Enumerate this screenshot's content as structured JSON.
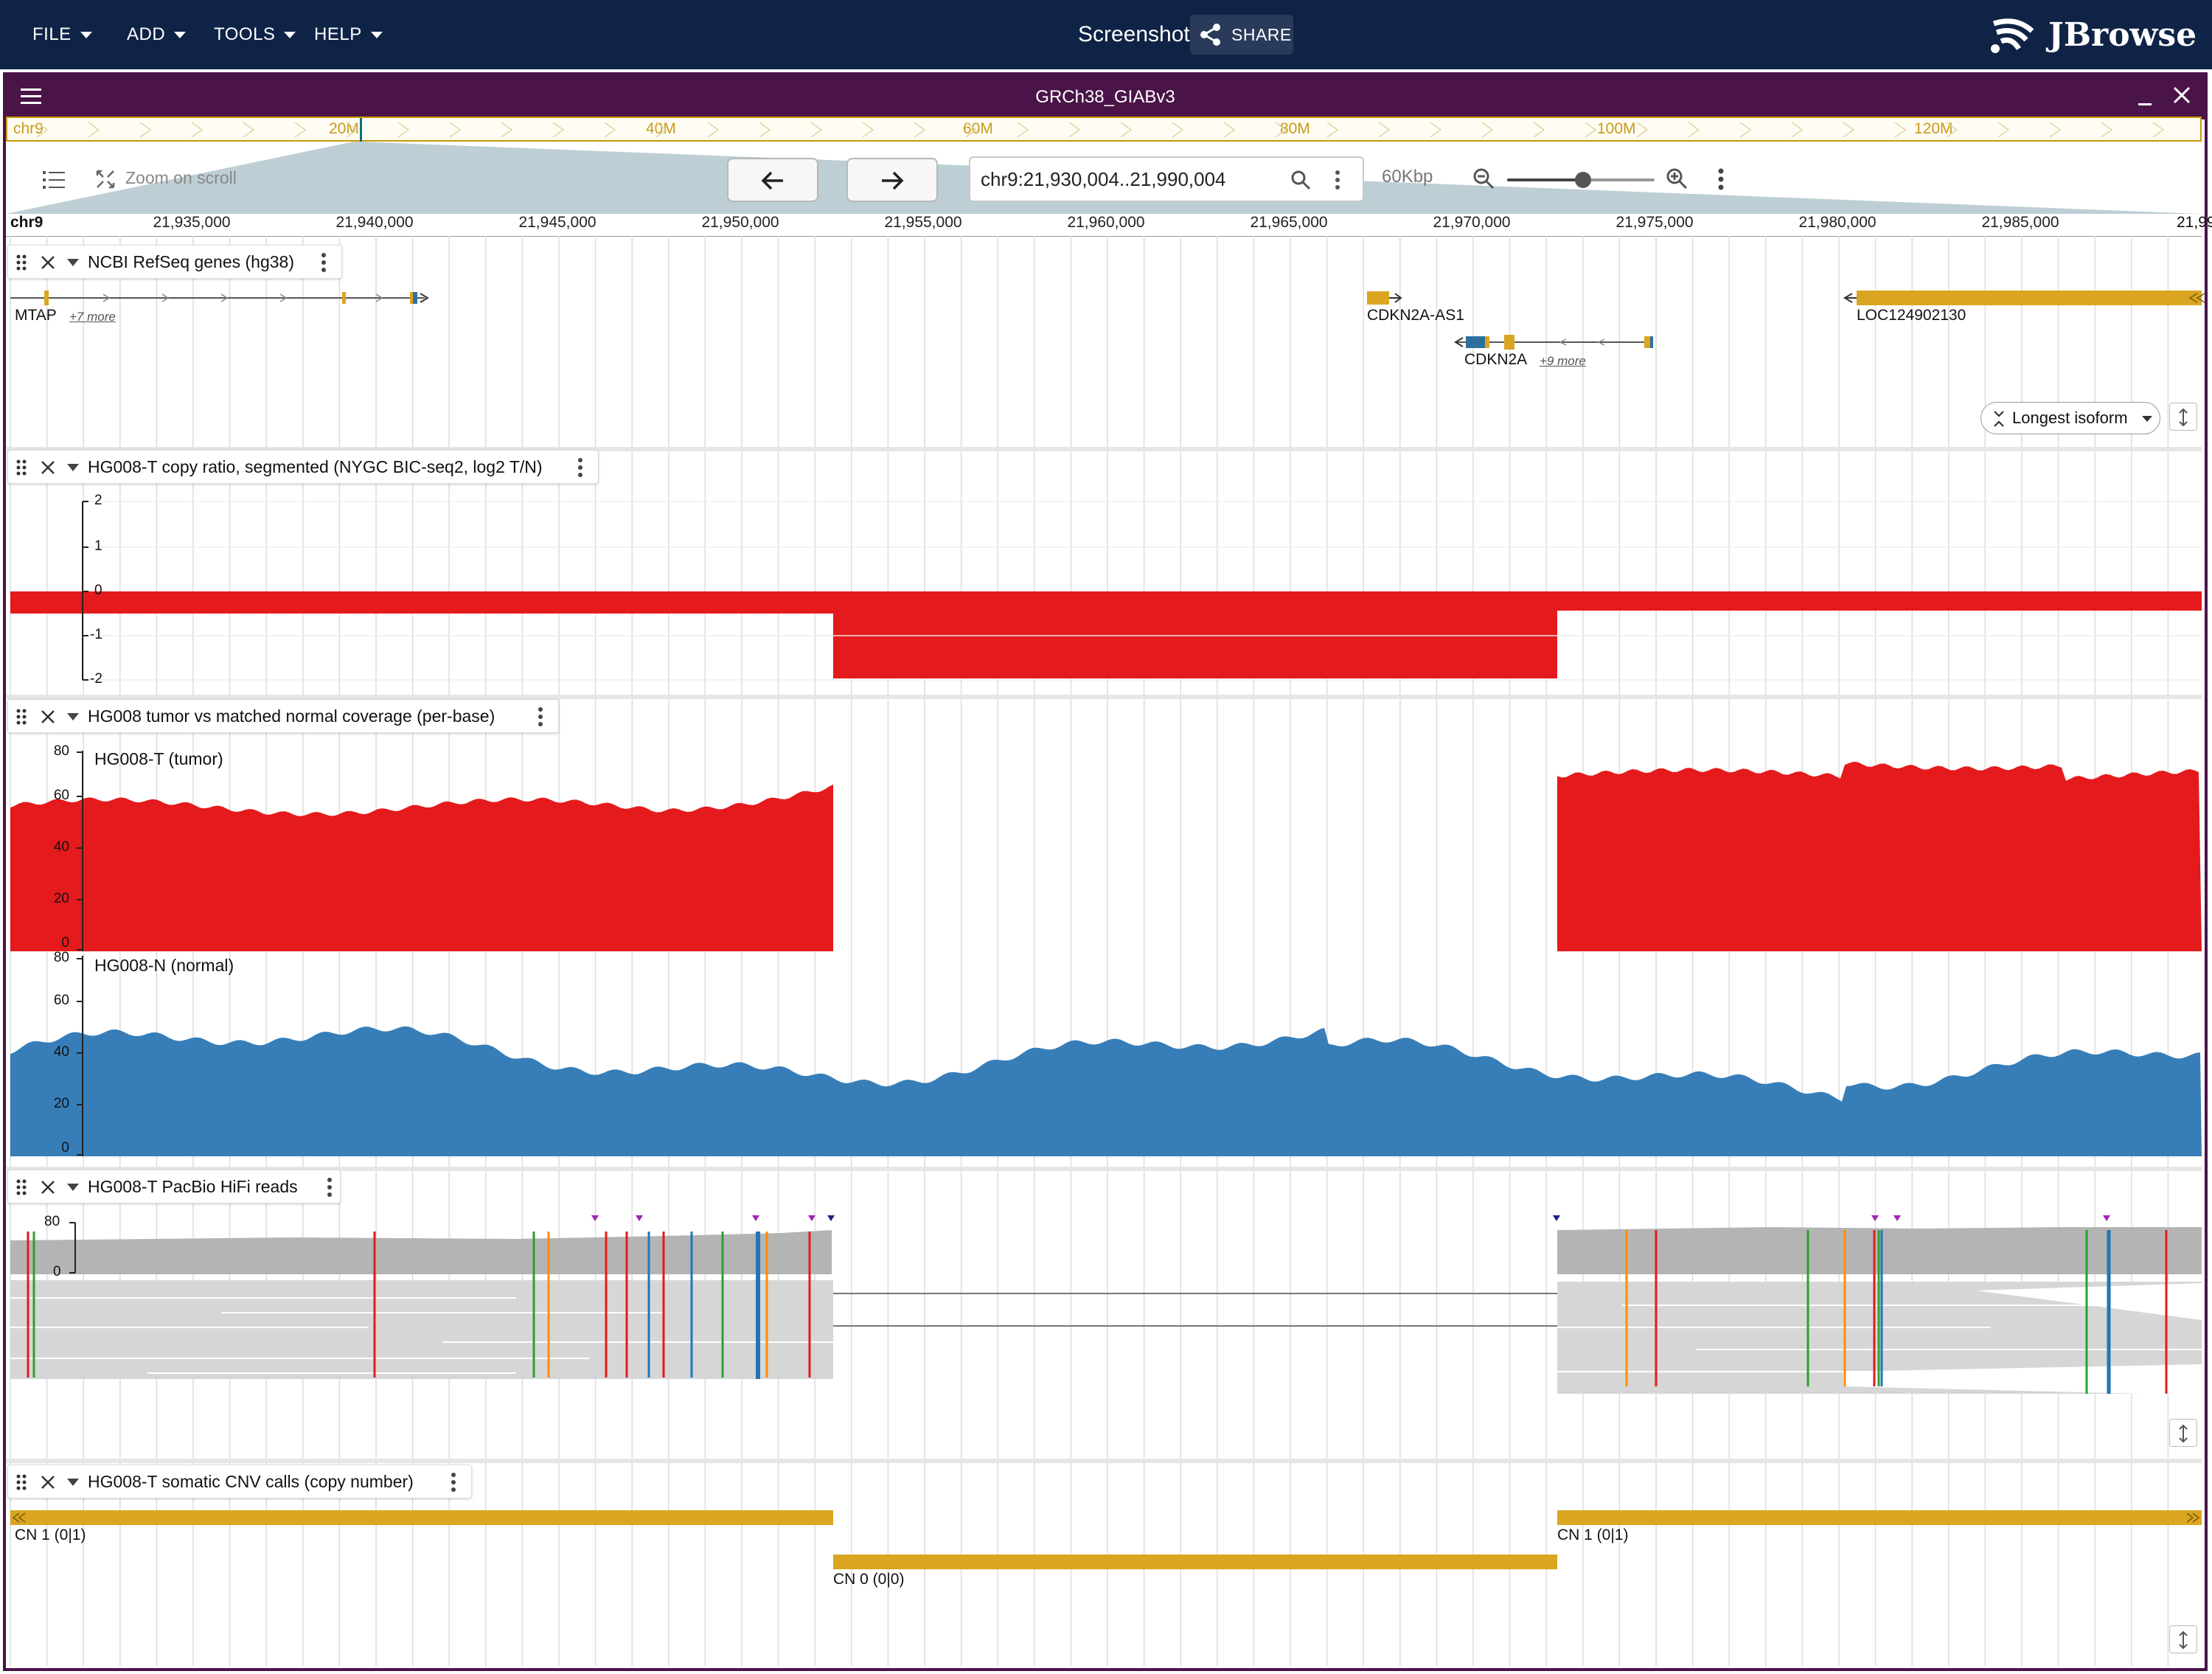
{
  "menu": {
    "file": "FILE",
    "add": "ADD",
    "tools": "TOOLS",
    "help": "HELP"
  },
  "header": {
    "title": "Screenshot",
    "share": "SHARE",
    "logo": "JBrowse"
  },
  "view": {
    "name": "GRCh38_GIABv3"
  },
  "overview": {
    "chrom": "chr9",
    "ticks": [
      "20M",
      "40M",
      "60M",
      "80M",
      "100M",
      "120M"
    ]
  },
  "navigation": {
    "zoom_on_scroll": "Zoom on scroll",
    "locstring": "chr9:21,930,004..21,990,004",
    "span": "60Kbp"
  },
  "scale": {
    "chrom": "chr9",
    "ticks": [
      "21,935,000",
      "21,940,000",
      "21,945,000",
      "21,950,000",
      "21,955,000",
      "21,960,000",
      "21,965,000",
      "21,970,000",
      "21,975,000",
      "21,980,000",
      "21,985,000",
      "21,99"
    ]
  },
  "tracks": {
    "genes": {
      "title": "NCBI RefSeq genes (hg38)",
      "features": [
        {
          "name": "MTAP",
          "more": "+7 more"
        },
        {
          "name": "CDKN2A-AS1"
        },
        {
          "name": "CDKN2A",
          "more": "+9 more"
        },
        {
          "name": "LOC124902130"
        }
      ],
      "isoform_button": "Longest isoform"
    },
    "copy_ratio": {
      "title": "HG008-T copy ratio, segmented (NYGC BIC-seq2, log2 T/N)",
      "axis": [
        "2",
        "1",
        "0",
        "-1",
        "-2"
      ],
      "color": "#e41a1c"
    },
    "coverage": {
      "title": "HG008 tumor vs matched normal coverage (per-base)",
      "tumor_label": "HG008-T (tumor)",
      "normal_label": "HG008-N (normal)",
      "axis": [
        "80",
        "60",
        "40",
        "20",
        "0"
      ],
      "tumor_color": "#e41a1c",
      "normal_color": "#377eb8"
    },
    "reads": {
      "title": "HG008-T PacBio HiFi reads",
      "axis": [
        "80",
        "0"
      ]
    },
    "cnv": {
      "title": "HG008-T somatic CNV calls (copy number)",
      "calls": [
        "CN 1 (0|1)",
        "CN 0 (0|0)",
        "CN 1 (0|1)"
      ],
      "color": "#daa520"
    }
  }
}
